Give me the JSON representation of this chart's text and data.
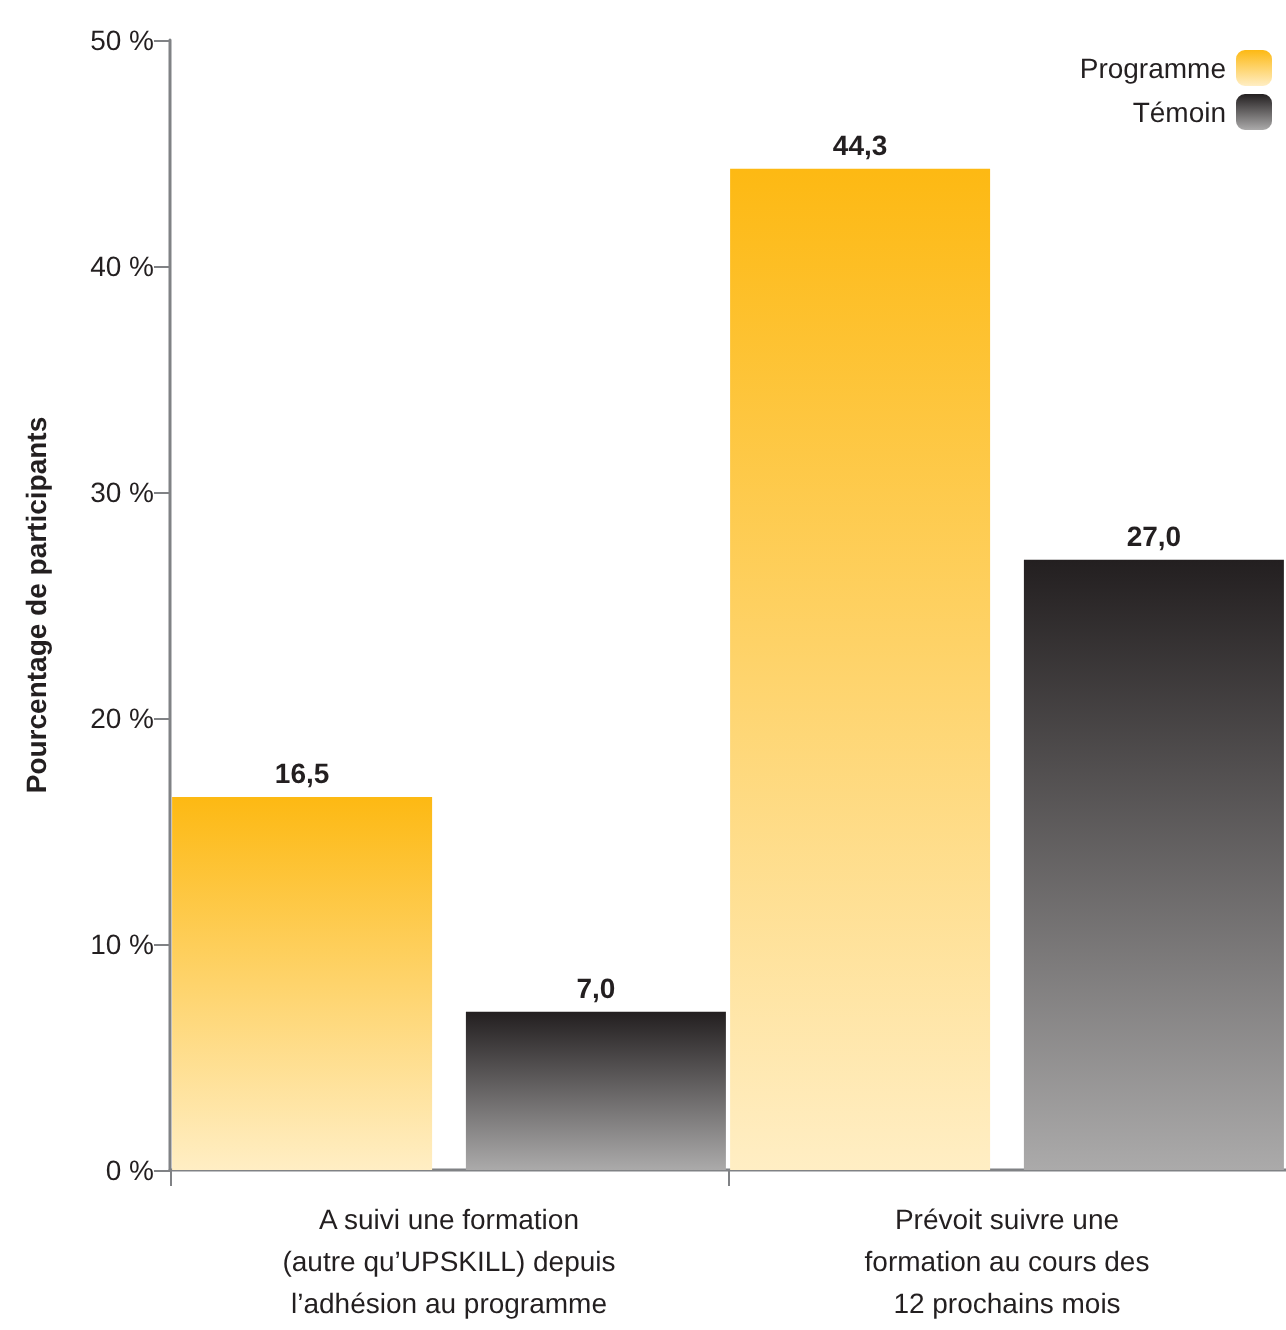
{
  "chart_data": {
    "type": "bar",
    "ylabel": "Pourcentage de participants",
    "categories": [
      "A suivi une formation\n(autre qu’UPSKILL) depuis\nl’adhésion au programme",
      "Prévoit suivre une\nformation au cours des\n12 prochains mois"
    ],
    "series": [
      {
        "name": "Programme",
        "color": "#fdb913",
        "values": [
          16.5,
          44.3
        ],
        "value_labels": [
          "16,5",
          "44,3"
        ]
      },
      {
        "name": "Témoin",
        "color": "#231f20",
        "values": [
          7.0,
          27.0
        ],
        "value_labels": [
          "7,0",
          "27,0"
        ]
      }
    ],
    "ylim": [
      0,
      50
    ],
    "yticks": [
      {
        "value": 0,
        "label": "0 %"
      },
      {
        "value": 10,
        "label": "10 %"
      },
      {
        "value": 20,
        "label": "20 %"
      },
      {
        "value": 30,
        "label": "30 %"
      },
      {
        "value": 40,
        "label": "40 %"
      },
      {
        "value": 50,
        "label": "50 %"
      }
    ],
    "legend": "top right",
    "grid": false
  }
}
